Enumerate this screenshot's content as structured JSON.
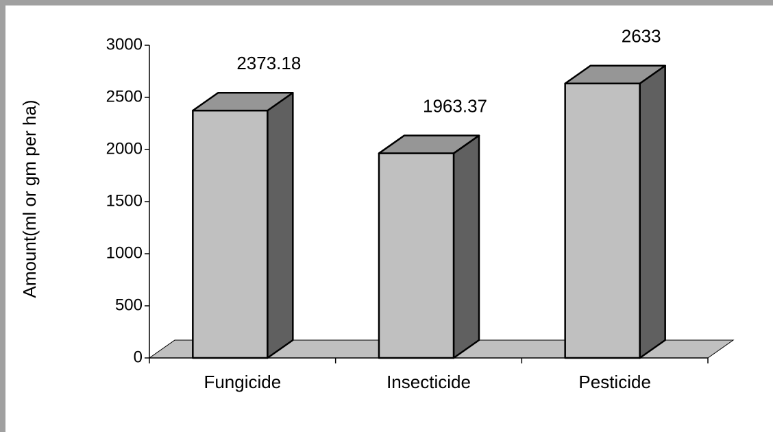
{
  "chart_data": {
    "type": "bar3d",
    "y_label": "Amount(ml or gm per ha)",
    "categories": [
      "Fungicide",
      "Insecticide",
      "Pesticide"
    ],
    "values": [
      2373.18,
      1963.37,
      2633
    ],
    "colors": {
      "front": "#c0c0c0",
      "top": "#969696",
      "side": "#606060",
      "floor": "#c0c0c0"
    },
    "ylim": [
      0,
      3000
    ],
    "yticks": [
      0,
      500,
      1000,
      1500,
      2000,
      2500,
      3000
    ]
  }
}
